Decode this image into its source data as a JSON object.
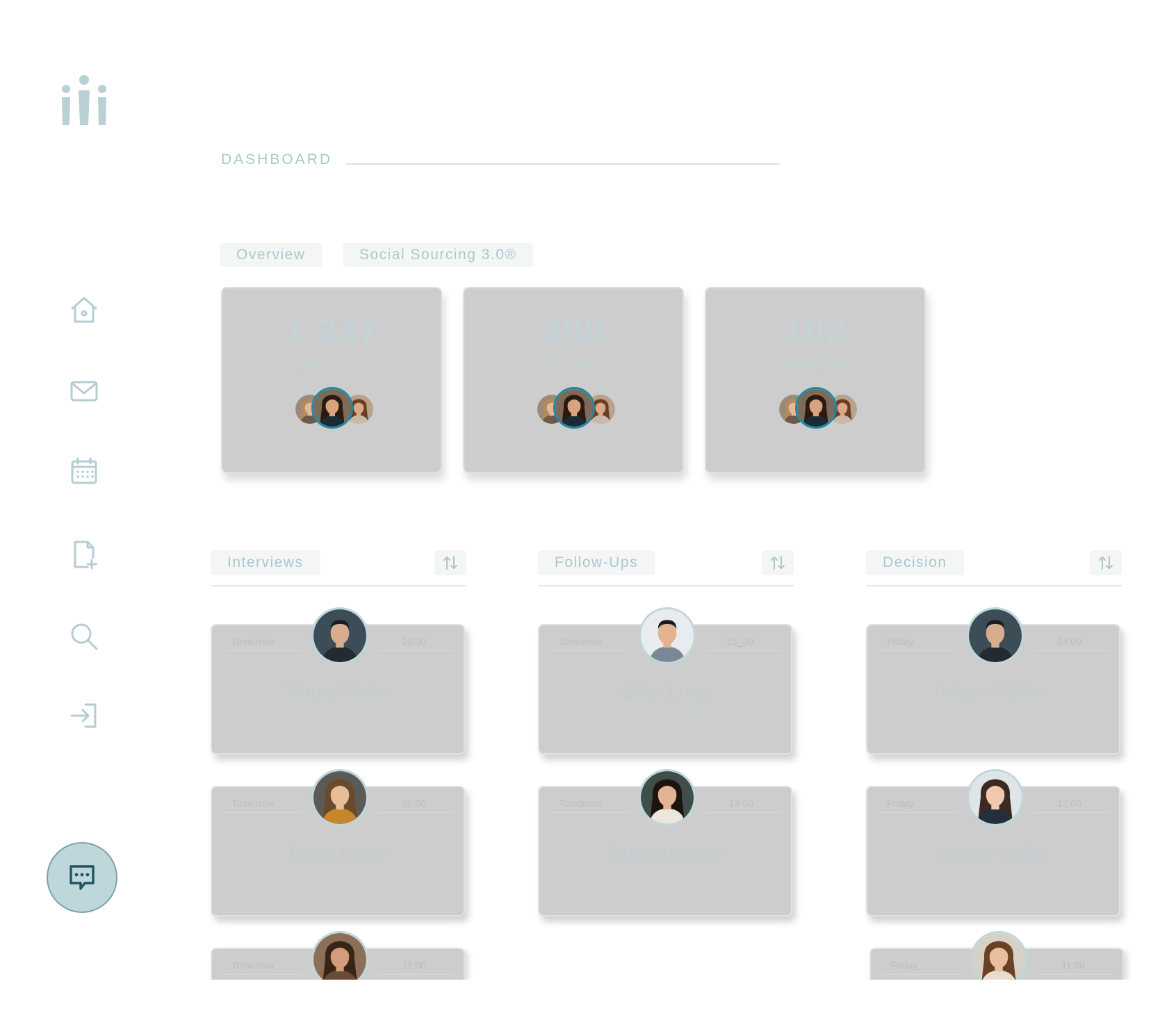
{
  "colors": {
    "accent": "#1f8aa3",
    "muted": "#a9c7cd",
    "card": "#cdcdcd",
    "chat_bg": "#bfd7db"
  },
  "sidebar": {
    "logo": "people-logo-icon",
    "items": [
      {
        "name": "home-icon"
      },
      {
        "name": "mail-icon"
      },
      {
        "name": "calendar-icon"
      },
      {
        "name": "add-document-icon"
      },
      {
        "name": "search-icon"
      },
      {
        "name": "login-icon"
      }
    ],
    "chat": "chat-icon"
  },
  "header": {
    "title": "DASHBOARD"
  },
  "tabs": [
    {
      "label": "Overview"
    },
    {
      "label": "Social Sourcing 3.0®"
    }
  ],
  "stats": [
    {
      "value": "1.347",
      "label": "Contacts Made"
    },
    {
      "value": "398",
      "label": "Messages"
    },
    {
      "value": "102",
      "label": "Interested"
    }
  ],
  "columns": [
    {
      "label": "Interviews",
      "cards": [
        {
          "day": "Tomorrow",
          "time": "10:00",
          "name": "Martin Müller",
          "role": "SDR"
        },
        {
          "day": "Tomorrow",
          "time": "15:00",
          "name": "Engel König",
          "role": "Cold Caller"
        },
        {
          "day": "Tomorrow",
          "time": "11:00",
          "name": "",
          "role": ""
        }
      ]
    },
    {
      "label": "Follow-Ups",
      "cards": [
        {
          "day": "Tomorrow",
          "time": "15_30",
          "name": "Ebbe Long",
          "role": "Sales Rep (SDR)"
        },
        {
          "day": "Tomorrow",
          "time": "13:00",
          "name": "Sigi Schneider",
          "role": "Cold Caller"
        }
      ]
    },
    {
      "label": "Decision",
      "cards": [
        {
          "day": "Friday",
          "time": "14:00",
          "name": "Martin Müller",
          "role": "SDR"
        },
        {
          "day": "Friday",
          "time": "12:00",
          "name": "Hanna Müller",
          "role": "SDR"
        },
        {
          "day": "Friday",
          "time": "11:00",
          "name": "",
          "role": ""
        }
      ]
    }
  ]
}
